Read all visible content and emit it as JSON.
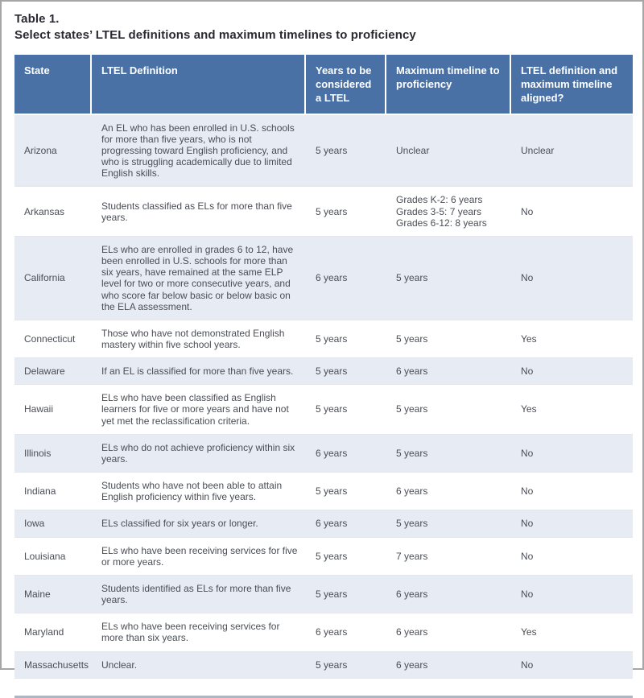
{
  "title": "Table 1.",
  "subtitle": "Select states’ LTEL definitions and maximum timelines to proficiency",
  "colors": {
    "header_bg": "#4971a6",
    "row_alt_bg": "#e7ebf3",
    "header_text": "#ffffff",
    "body_text": "#4a4e56",
    "title_text": "#2a2a33",
    "divider": "#aeb6c2"
  },
  "table": {
    "columns": [
      {
        "label": "State"
      },
      {
        "label": "LTEL Definition"
      },
      {
        "label": "Years to be considered a LTEL"
      },
      {
        "label": "Maximum timeline to proficiency"
      },
      {
        "label": "LTEL definition and maximum timeline aligned?"
      }
    ],
    "rows": [
      {
        "state": "Arizona",
        "definition": "An EL who has been enrolled in U.S. schools for more than five years, who is not progressing toward English proficiency, and who is struggling academically due to limited English skills.",
        "years": "5 years",
        "max_timeline": "Unclear",
        "aligned": "Unclear"
      },
      {
        "state": "Arkansas",
        "definition": "Students classified as ELs for more than five years.",
        "years": "5 years",
        "max_timeline": "Grades K-2: 6 years\nGrades 3-5: 7 years\nGrades 6-12: 8 years",
        "aligned": "No"
      },
      {
        "state": "California",
        "definition": "ELs who are enrolled in grades 6 to 12, have been enrolled in U.S. schools for more than six years, have remained at the same ELP level for two or more consecutive years, and who score far below basic or below basic on the ELA assessment.",
        "years": "6 years",
        "max_timeline": "5 years",
        "aligned": "No"
      },
      {
        "state": "Connecticut",
        "definition": "Those who have not demonstrated English mastery within five school years.",
        "years": "5 years",
        "max_timeline": "5 years",
        "aligned": "Yes"
      },
      {
        "state": "Delaware",
        "definition": "If an EL is classified for more than five years.",
        "years": "5 years",
        "max_timeline": "6 years",
        "aligned": "No"
      },
      {
        "state": "Hawaii",
        "definition": "ELs who have been classified as English learners for five or more years and have not yet met the reclassification criteria.",
        "years": "5 years",
        "max_timeline": "5 years",
        "aligned": "Yes"
      },
      {
        "state": "Illinois",
        "definition": "ELs who do not achieve proficiency within six years.",
        "years": "6 years",
        "max_timeline": "5 years",
        "aligned": "No"
      },
      {
        "state": "Indiana",
        "definition": "Students who have not been able to attain English proficiency within five years.",
        "years": "5 years",
        "max_timeline": "6 years",
        "aligned": "No"
      },
      {
        "state": "Iowa",
        "definition": "ELs classified for six years or longer.",
        "years": "6 years",
        "max_timeline": "5 years",
        "aligned": "No"
      },
      {
        "state": "Louisiana",
        "definition": "ELs who have been receiving services for five or more years.",
        "years": "5 years",
        "max_timeline": "7 years",
        "aligned": "No"
      },
      {
        "state": "Maine",
        "definition": "Students identified as ELs for more than five years.",
        "years": "5 years",
        "max_timeline": "6 years",
        "aligned": "No"
      },
      {
        "state": "Maryland",
        "definition": "ELs who have been receiving services for more than six years.",
        "years": "6 years",
        "max_timeline": "6 years",
        "aligned": "Yes"
      },
      {
        "state": "Massachusetts",
        "definition": "Unclear.",
        "years": "5 years",
        "max_timeline": "6 years",
        "aligned": "No"
      }
    ]
  }
}
